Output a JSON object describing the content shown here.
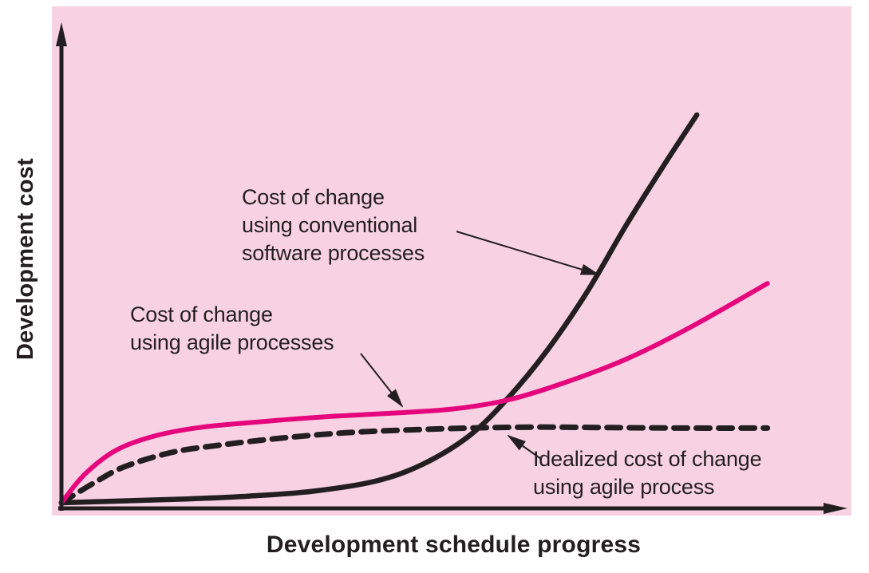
{
  "figure": {
    "plot_bg": "#f8d2e2",
    "axis_color": "#231f20",
    "text_color": "#231f20"
  },
  "chart_data": {
    "type": "line",
    "title": "",
    "xlabel": "Development schedule progress",
    "ylabel": "Development cost",
    "x_range": [
      0,
      100
    ],
    "y_range": [
      0,
      100
    ],
    "grid": false,
    "legend_position": "none (labels via annotations with arrows)",
    "series": [
      {
        "name": "Cost of change using conventional software processes",
        "color": "#231f20",
        "dash": "solid",
        "points": [
          [
            0,
            0
          ],
          [
            8,
            0.4
          ],
          [
            16,
            0.8
          ],
          [
            24,
            1.4
          ],
          [
            32,
            2.4
          ],
          [
            40,
            4.5
          ],
          [
            46,
            8
          ],
          [
            52,
            14
          ],
          [
            57,
            22
          ],
          [
            62,
            32
          ],
          [
            67,
            44
          ],
          [
            72,
            58
          ],
          [
            77,
            71
          ],
          [
            81,
            81
          ]
        ]
      },
      {
        "name": "Cost of change using agile processes",
        "color": "#e5067e",
        "dash": "solid",
        "points": [
          [
            0,
            0
          ],
          [
            3,
            6
          ],
          [
            7,
            11
          ],
          [
            12,
            14
          ],
          [
            18,
            15.8
          ],
          [
            26,
            17
          ],
          [
            34,
            18
          ],
          [
            42,
            18.7
          ],
          [
            50,
            19.6
          ],
          [
            57,
            21.5
          ],
          [
            64,
            25
          ],
          [
            72,
            30
          ],
          [
            80,
            36.5
          ],
          [
            90,
            45.8
          ]
        ]
      },
      {
        "name": "Idealized cost of change using agile process",
        "color": "#231f20",
        "dash": "dashed",
        "points": [
          [
            0,
            0
          ],
          [
            4,
            4
          ],
          [
            8,
            7.5
          ],
          [
            14,
            10.5
          ],
          [
            20,
            12
          ],
          [
            28,
            13.5
          ],
          [
            36,
            14.6
          ],
          [
            44,
            15.2
          ],
          [
            52,
            15.6
          ],
          [
            60,
            15.8
          ],
          [
            70,
            15.7
          ],
          [
            80,
            15.6
          ],
          [
            90,
            15.6
          ]
        ]
      }
    ],
    "annotations": [
      {
        "id": "conventional",
        "text": "Cost of change\nusing conventional\nsoftware processes",
        "target_series": "Cost of change using conventional software processes"
      },
      {
        "id": "agile",
        "text": "Cost of change\nusing agile processes",
        "target_series": "Cost of change using agile processes"
      },
      {
        "id": "idealized",
        "text": "Idealized cost of change\nusing agile process",
        "target_series": "Idealized cost of change using agile process"
      }
    ]
  }
}
